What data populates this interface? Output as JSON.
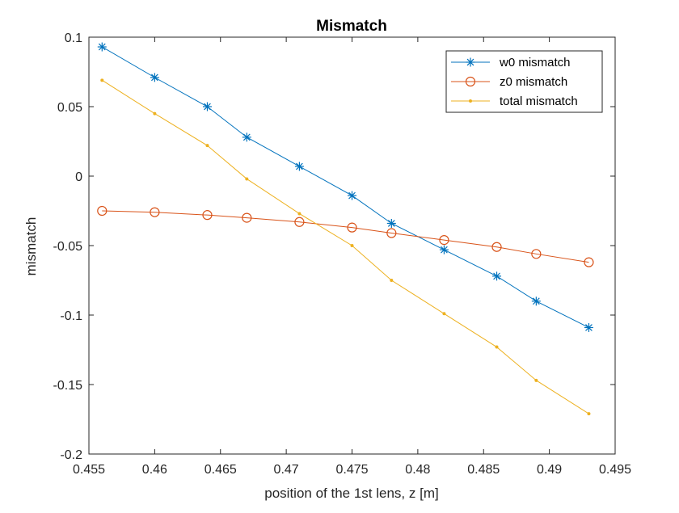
{
  "chart_data": {
    "type": "line",
    "title": "Mismatch",
    "xlabel": "position of the 1st lens, z [m]",
    "ylabel": "mismatch",
    "xlim": [
      0.455,
      0.495
    ],
    "ylim": [
      -0.2,
      0.1
    ],
    "xticks": [
      0.455,
      0.46,
      0.465,
      0.47,
      0.475,
      0.48,
      0.485,
      0.49,
      0.495
    ],
    "xtick_labels": [
      "0.455",
      "0.46",
      "0.465",
      "0.47",
      "0.475",
      "0.48",
      "0.485",
      "0.49",
      "0.495"
    ],
    "yticks": [
      -0.2,
      -0.15,
      -0.1,
      -0.05,
      0,
      0.05,
      0.1
    ],
    "ytick_labels": [
      "-0.2",
      "-0.15",
      "-0.1",
      "-0.05",
      "0",
      "0.05",
      "0.1"
    ],
    "x": [
      0.456,
      0.46,
      0.464,
      0.467,
      0.471,
      0.475,
      0.478,
      0.482,
      0.486,
      0.489,
      0.493
    ],
    "series": [
      {
        "name": "w0 mismatch",
        "color": "#0072BD",
        "marker": "asterisk",
        "values": [
          0.093,
          0.071,
          0.05,
          0.028,
          0.007,
          -0.014,
          -0.034,
          -0.053,
          -0.072,
          -0.09,
          -0.109
        ]
      },
      {
        "name": "z0 mismatch",
        "color": "#D95319",
        "marker": "circle",
        "values": [
          -0.025,
          -0.026,
          -0.028,
          -0.03,
          -0.033,
          -0.037,
          -0.041,
          -0.046,
          -0.051,
          -0.056,
          -0.062
        ]
      },
      {
        "name": "total mismatch",
        "color": "#EDB120",
        "marker": "dot",
        "values": [
          0.069,
          0.045,
          0.022,
          -0.002,
          -0.027,
          -0.05,
          -0.075,
          -0.099,
          -0.123,
          -0.147,
          -0.171
        ]
      }
    ],
    "grid": false,
    "legend_position": "top-right",
    "box": true
  }
}
